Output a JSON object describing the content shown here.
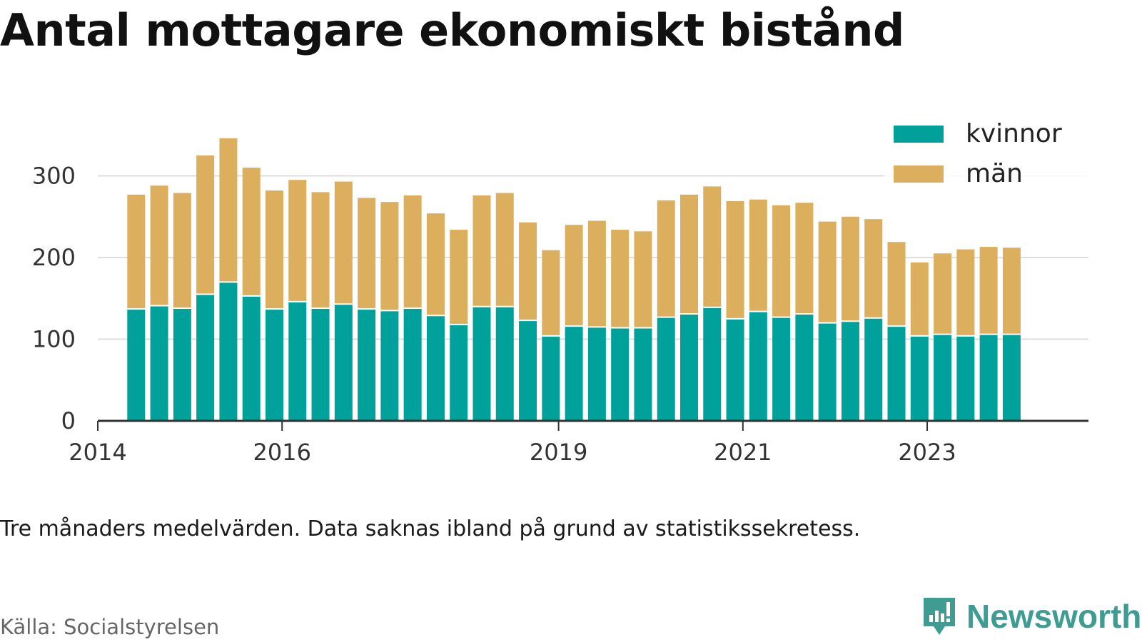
{
  "chart_data": {
    "type": "bar",
    "stacked": true,
    "title": "Antal mottagare ekonomiskt bistånd",
    "note": "Tre månaders medelvärden. Data saknas ibland på grund av statistikssekretess.",
    "source": "Källa: Socialstyrelsen",
    "brand": "Newsworthy",
    "xlabel": "",
    "ylabel": "",
    "ylim": [
      0,
      340
    ],
    "yticks": [
      0,
      100,
      200,
      300
    ],
    "xlim": [
      "2014-01",
      "2024-10"
    ],
    "xticks": [
      {
        "label": "2014",
        "x": "2014-01"
      },
      {
        "label": "2016",
        "x": "2016-01"
      },
      {
        "label": "2019",
        "x": "2019-01"
      },
      {
        "label": "2021",
        "x": "2021-01"
      },
      {
        "label": "2023",
        "x": "2023-01"
      }
    ],
    "grid": true,
    "legend_position": "top-right",
    "x": [
      "2014-06",
      "2014-09",
      "2014-12",
      "2015-03",
      "2015-06",
      "2015-09",
      "2015-12",
      "2016-03",
      "2016-06",
      "2016-09",
      "2016-12",
      "2017-03",
      "2017-06",
      "2017-09",
      "2017-12",
      "2018-03",
      "2018-06",
      "2018-09",
      "2018-12",
      "2019-03",
      "2019-06",
      "2019-09",
      "2019-12",
      "2020-03",
      "2020-06",
      "2020-09",
      "2020-12",
      "2021-03",
      "2021-06",
      "2021-09",
      "2021-12",
      "2022-03",
      "2022-06",
      "2022-09",
      "2022-12",
      "2023-03",
      "2023-06",
      "2023-09",
      "2023-12"
    ],
    "series": [
      {
        "name": "kvinnor",
        "color": "#00a19a",
        "values": [
          137,
          141,
          138,
          155,
          170,
          153,
          137,
          146,
          138,
          143,
          137,
          135,
          138,
          129,
          118,
          140,
          140,
          123,
          104,
          116,
          115,
          114,
          114,
          127,
          131,
          139,
          125,
          134,
          127,
          131,
          120,
          122,
          126,
          116,
          104,
          106,
          104,
          106,
          106
        ]
      },
      {
        "name": "män",
        "color": "#dbaf5d",
        "values": [
          140,
          147,
          141,
          170,
          176,
          157,
          145,
          149,
          142,
          150,
          136,
          133,
          138,
          125,
          116,
          136,
          139,
          120,
          105,
          124,
          130,
          120,
          118,
          143,
          146,
          148,
          144,
          137,
          137,
          136,
          124,
          128,
          121,
          103,
          90,
          99,
          106,
          107,
          106
        ]
      }
    ]
  }
}
